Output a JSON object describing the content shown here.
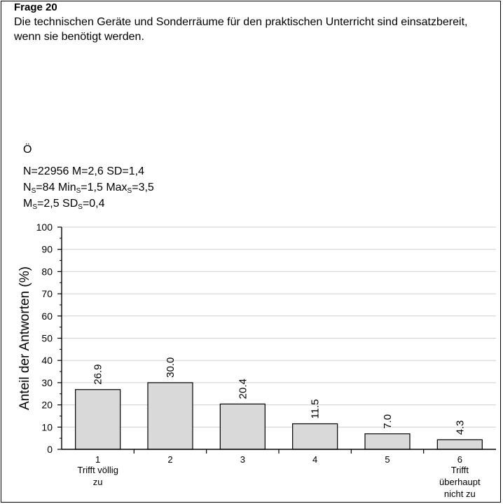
{
  "question": {
    "number": "Frage 20",
    "text": "Die technischen Geräte und Sonderräume für den praktischen Unterricht sind einsatzbereit, wenn sie benötigt werden."
  },
  "stats": {
    "group": "Ö",
    "line1": "N=22956 M=2,6 SD=1,4",
    "line2": {
      "ns_label": "N",
      "ns_sub": "S",
      "ns_value": "=84 ",
      "min_label": "Min",
      "min_sub": "S",
      "min_value": "=1,5 ",
      "max_label": "Max",
      "max_sub": "S",
      "max_value": "=3,5"
    },
    "line3": {
      "ms_label": "M",
      "ms_sub": "S",
      "ms_value": "=2,5 ",
      "sds_label": "SD",
      "sds_sub": "S",
      "sds_value": "=0,4"
    }
  },
  "chart_data": {
    "type": "bar",
    "ylabel": "Anteil der Antworten (%)",
    "xlabel": "",
    "ylim": [
      0,
      100
    ],
    "yticks": [
      0,
      10,
      20,
      30,
      40,
      50,
      60,
      70,
      80,
      90,
      100
    ],
    "grid": true,
    "categories": [
      {
        "number": "1",
        "label": [
          "Trifft völlig",
          "zu"
        ]
      },
      {
        "number": "2",
        "label": []
      },
      {
        "number": "3",
        "label": []
      },
      {
        "number": "4",
        "label": []
      },
      {
        "number": "5",
        "label": []
      },
      {
        "number": "6",
        "label": [
          "Trifft",
          "überhaupt",
          "nicht zu"
        ]
      }
    ],
    "values": [
      26.9,
      30.0,
      20.4,
      11.5,
      7.0,
      4.3
    ],
    "value_labels": [
      "26.9",
      "30.0",
      "20.4",
      "11.5",
      "7.0",
      "4.3"
    ],
    "bar_color": "#d9d9d9",
    "grid_color": "#d0d0d0"
  }
}
